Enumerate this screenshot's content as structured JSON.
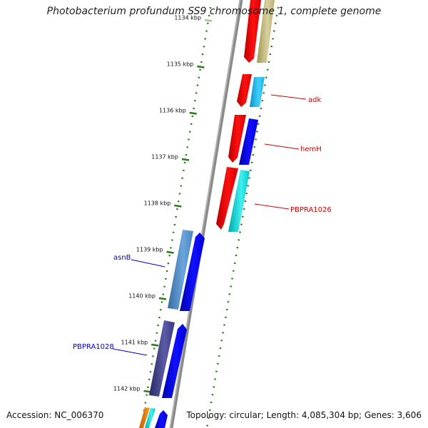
{
  "title": "Photobacterium profundum SS9 chromosome 1, complete genome",
  "accession": "Accession: NC_006370",
  "summary": "Topology: circular; Length: 4,085,304 bp; Genes: 3,606",
  "ticks": [
    {
      "label": "1134 kbp",
      "faded": true
    },
    {
      "label": "1135 kbp"
    },
    {
      "label": "1136 kbp"
    },
    {
      "label": "1137 kbp"
    },
    {
      "label": "1138 kbp"
    },
    {
      "label": "1139 kbp"
    },
    {
      "label": "1140 kbp"
    },
    {
      "label": "1141 kbp"
    },
    {
      "label": "1142 kbp"
    }
  ],
  "genes": [
    {
      "name": "adk",
      "side": "right",
      "color": "#cc0000"
    },
    {
      "name": "hemH",
      "side": "right",
      "color": "#cc0000"
    },
    {
      "name": "PBPRA1026",
      "side": "right",
      "color": "#cc0000"
    },
    {
      "name": "asnB",
      "side": "left",
      "color": "#0000cc"
    },
    {
      "name": "PBPRA1028",
      "side": "left",
      "color": "#0000cc"
    }
  ],
  "colors": {
    "backbone": "#8a8a8a",
    "tick": "#2a7a1a",
    "forward_red": "#ff0000",
    "forward_blue": "#0000ff",
    "olive": "#c8c080",
    "sky": "#20b8f0",
    "teal": "#00d0d0",
    "steel": "#4a86c0",
    "indigo": "#3a3a80",
    "orange": "#f08000"
  }
}
